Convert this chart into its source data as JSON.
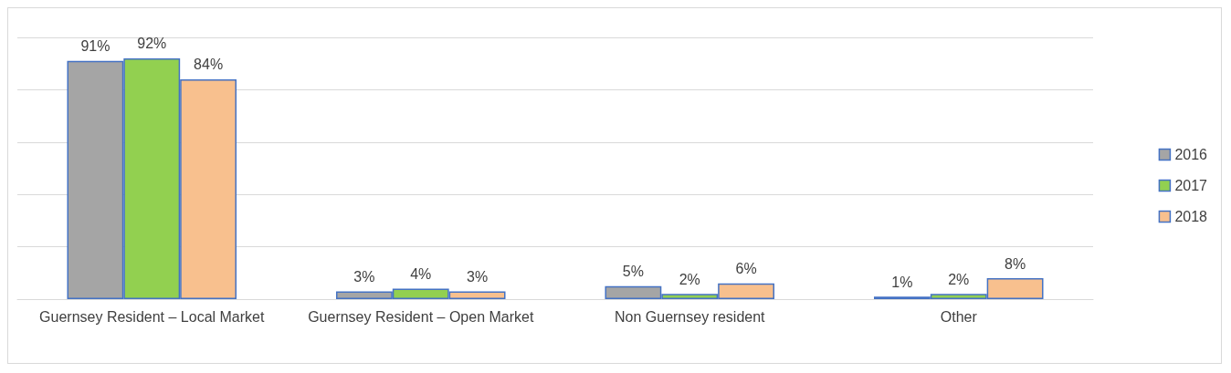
{
  "chart_data": {
    "type": "bar",
    "categories": [
      "Guernsey Resident – Local Market",
      "Guernsey Resident – Open Market",
      "Non Guernsey resident",
      "Other"
    ],
    "series": [
      {
        "name": "2016",
        "color": "#a5a5a5",
        "values": [
          91,
          3,
          5,
          1
        ],
        "value_labels": [
          "91%",
          "3%",
          "5%",
          "1%"
        ]
      },
      {
        "name": "2017",
        "color": "#92d050",
        "values": [
          92,
          4,
          2,
          2
        ],
        "value_labels": [
          "92%",
          "4%",
          "2%",
          "2%"
        ]
      },
      {
        "name": "2018",
        "color": "#f8c08e",
        "values": [
          84,
          3,
          6,
          8
        ],
        "value_labels": [
          "84%",
          "3%",
          "6%",
          "8%"
        ]
      }
    ],
    "ylim": [
      0,
      100
    ],
    "yticks": [
      {
        "value": 0,
        "label": null
      },
      {
        "value": 20,
        "label": null
      },
      {
        "value": 40,
        "label": null
      },
      {
        "value": 60,
        "label": null
      },
      {
        "value": 80,
        "label": null
      },
      {
        "value": 100,
        "label": null
      }
    ],
    "grid": "y",
    "legend": "right",
    "tick_labels": "x"
  }
}
